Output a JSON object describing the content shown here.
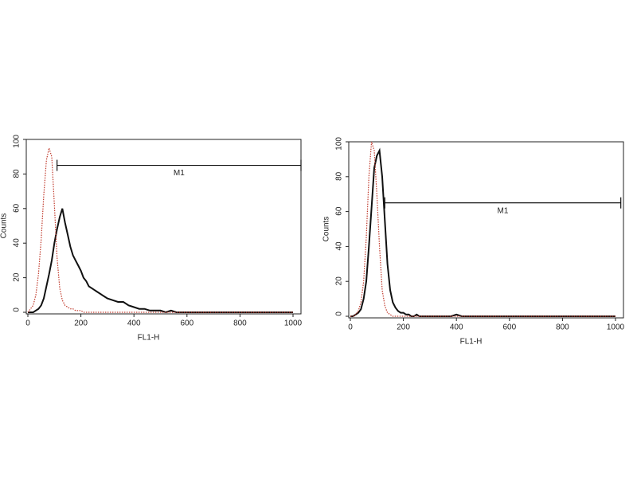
{
  "chart_data": [
    {
      "type": "line",
      "xlabel": "FL1-H",
      "ylabel": "Counts",
      "x": [
        0,
        10,
        20,
        30,
        40,
        50,
        60,
        70,
        80,
        90,
        100,
        110,
        120,
        130,
        140,
        150,
        160,
        170,
        180,
        190,
        200,
        210,
        220,
        230,
        240,
        250,
        260,
        270,
        280,
        290,
        300,
        320,
        340,
        360,
        380,
        400,
        420,
        440,
        460,
        480,
        500,
        520,
        540,
        560,
        580,
        600,
        700,
        800,
        900,
        1000
      ],
      "series": [
        {
          "color": "#111111",
          "style": "solid",
          "values": [
            0,
            0,
            0,
            1,
            2,
            4,
            8,
            15,
            22,
            30,
            40,
            48,
            55,
            60,
            52,
            45,
            38,
            33,
            30,
            27,
            24,
            20,
            18,
            15,
            14,
            13,
            12,
            11,
            10,
            9,
            8,
            7,
            6,
            6,
            4,
            3,
            2,
            2,
            1,
            1,
            1,
            0,
            1,
            0,
            0,
            0,
            0,
            0,
            0,
            0
          ]
        },
        {
          "color": "#c0392b",
          "style": "dotted",
          "values": [
            0,
            2,
            4,
            10,
            22,
            42,
            68,
            88,
            95,
            90,
            62,
            32,
            14,
            7,
            4,
            3,
            2,
            2,
            1,
            1,
            1,
            0,
            0,
            0,
            0,
            0,
            0,
            0,
            0,
            0,
            0,
            0,
            0,
            0,
            0,
            0,
            0,
            0,
            0,
            0,
            0,
            0,
            0,
            0,
            0,
            0,
            0,
            0,
            0,
            0
          ]
        }
      ],
      "gate": {
        "label": "M1",
        "x": [
          110,
          1030
        ],
        "y": 85
      },
      "xlim": [
        0,
        1030
      ],
      "ylim": [
        0,
        100
      ],
      "xticks": [
        0,
        200,
        400,
        600,
        800,
        1000
      ],
      "yticks": [
        0,
        20,
        40,
        60,
        80,
        100
      ]
    },
    {
      "type": "line",
      "xlabel": "FL1-H",
      "ylabel": "Counts",
      "x": [
        0,
        10,
        20,
        30,
        40,
        50,
        60,
        70,
        80,
        90,
        100,
        110,
        120,
        130,
        140,
        150,
        160,
        170,
        180,
        190,
        200,
        210,
        220,
        230,
        240,
        250,
        260,
        270,
        280,
        290,
        300,
        320,
        340,
        360,
        380,
        400,
        420,
        440,
        460,
        480,
        500,
        520,
        540,
        560,
        580,
        600,
        700,
        800,
        900,
        1000
      ],
      "series": [
        {
          "color": "#111111",
          "style": "solid",
          "values": [
            0,
            0,
            1,
            2,
            4,
            10,
            20,
            40,
            62,
            85,
            92,
            95,
            80,
            55,
            30,
            15,
            8,
            5,
            3,
            2,
            2,
            1,
            1,
            0,
            0,
            1,
            0,
            0,
            0,
            0,
            0,
            0,
            0,
            0,
            0,
            1,
            0,
            0,
            0,
            0,
            0,
            0,
            0,
            0,
            0,
            0,
            0,
            0,
            0,
            0
          ]
        },
        {
          "color": "#c0392b",
          "style": "dotted",
          "values": [
            0,
            0,
            1,
            3,
            8,
            20,
            45,
            80,
            100,
            95,
            70,
            40,
            15,
            6,
            2,
            1,
            0,
            0,
            0,
            0,
            0,
            0,
            0,
            0,
            0,
            0,
            0,
            0,
            0,
            0,
            0,
            0,
            0,
            0,
            0,
            0,
            0,
            0,
            0,
            0,
            0,
            0,
            0,
            0,
            0,
            0,
            0,
            0,
            0,
            0
          ]
        }
      ],
      "gate": {
        "label": "M1",
        "x": [
          130,
          1020
        ],
        "y": 65
      },
      "xlim": [
        0,
        1030
      ],
      "ylim": [
        0,
        100
      ],
      "xticks": [
        0,
        200,
        400,
        600,
        800,
        1000
      ],
      "yticks": [
        0,
        20,
        40,
        60,
        80,
        100
      ]
    }
  ]
}
